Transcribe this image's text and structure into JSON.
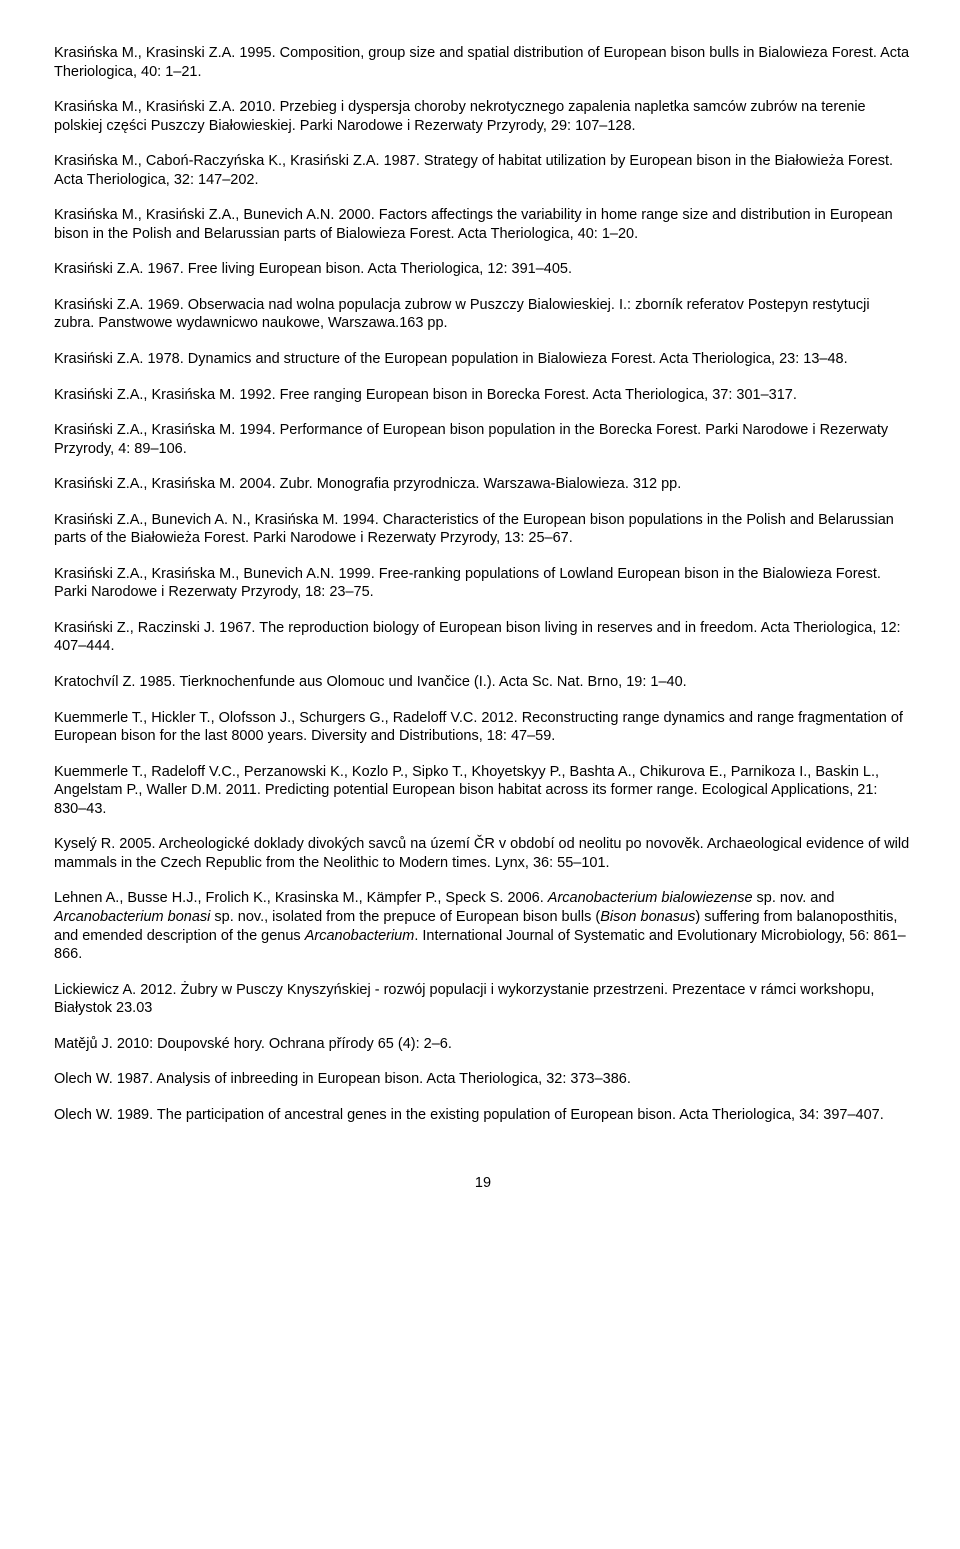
{
  "refs": [
    "Krasińska M., Krasinski Z.A. 1995. Composition, group size and spatial distribution of European bison bulls in Bialowieza Forest. Acta Theriologica, 40: 1–21.",
    "Krasińska M., Krasiński Z.A. 2010. Przebieg i dyspersja choroby nekrotycznego zapalenia napletka samców zubrów na terenie polskiej części Puszczy Białowieskiej. Parki Narodowe i Rezerwaty Przyrody, 29: 107–128.",
    "Krasińska M., Caboń-Raczyńska K., Krasiński Z.A. 1987. Strategy of habitat utilization by European bison in the Białowieża Forest. Acta Theriologica, 32: 147–202.",
    "Krasińska M., Krasiński Z.A., Bunevich A.N. 2000. Factors affectings the variability in home range size and distribution in European bison in the Polish and Belarussian parts of Bialowieza Forest. Acta Theriologica, 40: 1–20.",
    "Krasiński Z.A. 1967. Free living European bison. Acta Theriologica, 12: 391–405.",
    "Krasiński Z.A. 1969. Obserwacia nad wolna populacja zubrow w Puszczy Bialowieskiej. I.: zborník referatov Postepyn restytucji zubra. Panstwowe wydawnicwo naukowe, Warszawa.163 pp.",
    "Krasiński Z.A. 1978. Dynamics and structure of the European population in Bialowieza Forest. Acta Theriologica, 23: 13–48.",
    "Krasiński Z.A., Krasińska M. 1992. Free ranging European bison in Borecka Forest. Acta Theriologica, 37: 301–317.",
    "Krasiński Z.A., Krasińska M. 1994. Performance of European bison population in the Borecka Forest. Parki Narodowe i Rezerwaty Przyrody, 4: 89–106.",
    "Krasiński Z.A., Krasińska M. 2004. Zubr. Monografia przyrodnicza. Warszawa-Bialowieza. 312 pp.",
    "Krasiński Z.A., Bunevich A. N., Krasińska M. 1994. Characteristics of the European bison populations in the Polish and Belarussian parts of the Białowieża Forest. Parki Narodowe i Rezerwaty Przyrody, 13: 25–67.",
    "Krasiński Z.A., Krasińska M., Bunevich A.N. 1999. Free-ranking populations of Lowland European bison in the Bialowieza Forest. Parki Narodowe i Rezerwaty Przyrody, 18: 23–75.",
    "Krasiński Z., Raczinski J. 1967. The reproduction biology of European bison living in reserves and in freedom. Acta Theriologica, 12: 407–444.",
    "Kratochvíl Z. 1985. Tierknochenfunde aus Olomouc und Ivančice (I.). Acta Sc. Nat. Brno, 19: 1–40.",
    "Kuemmerle T., Hickler T., Olofsson J., Schurgers G., Radeloff V.C. 2012. Reconstructing range dynamics and range fragmentation of European bison for the last 8000 years. Diversity and Distributions, 18: 47–59.",
    "Kuemmerle T., Radeloff V.C., Perzanowski K., Kozlo P., Sipko T., Khoyetskyy P., Bashta A., Chikurova E., Parnikoza I., Baskin L., Angelstam P., Waller D.M. 2011. Predicting potential European bison habitat across its former range. Ecological Applications, 21: 830–43.",
    "Kyselý R. 2005. Archeologické doklady divokých savců na území ČR v období od neolitu po novověk. Archaeological evidence of wild mammals in the Czech Republic from the Neolithic to Modern times. Lynx, 36: 55–101.",
    "Lickiewicz A. 2012. Żubry w Pusczy Knyszyńskiej - rozwój populacji i wykorzystanie przestrzeni. Prezentace v rámci workshopu, Białystok 23.03",
    "Matějů J. 2010: Doupovské hory. Ochrana přírody 65 (4): 2–6.",
    "Olech W. 1987. Analysis of inbreeding in European bison. Acta Theriologica, 32: 373–386.",
    "Olech W. 1989. The participation of ancestral genes in the existing population of European bison. Acta Theriologica, 34: 397–407."
  ],
  "lehnen": {
    "p1": "Lehnen A., Busse H.J., Frolich K., Krasinska M., Kämpfer P., Speck S. 2006. ",
    "i1": "Arcanobacterium bialowiezense",
    "p2": " sp. nov. and ",
    "i2": "Arcanobacterium bonasi",
    "p3": " sp. nov., isolated from the prepuce of European bison bulls (",
    "i3": "Bison bonasus",
    "p4": ") suffering from balanoposthitis, and emended description of the genus ",
    "i4": "Arcanobacterium",
    "p5": ". International Journal of Systematic and Evolutionary Microbiology, 56: 861–866."
  },
  "pageNumber": "19"
}
